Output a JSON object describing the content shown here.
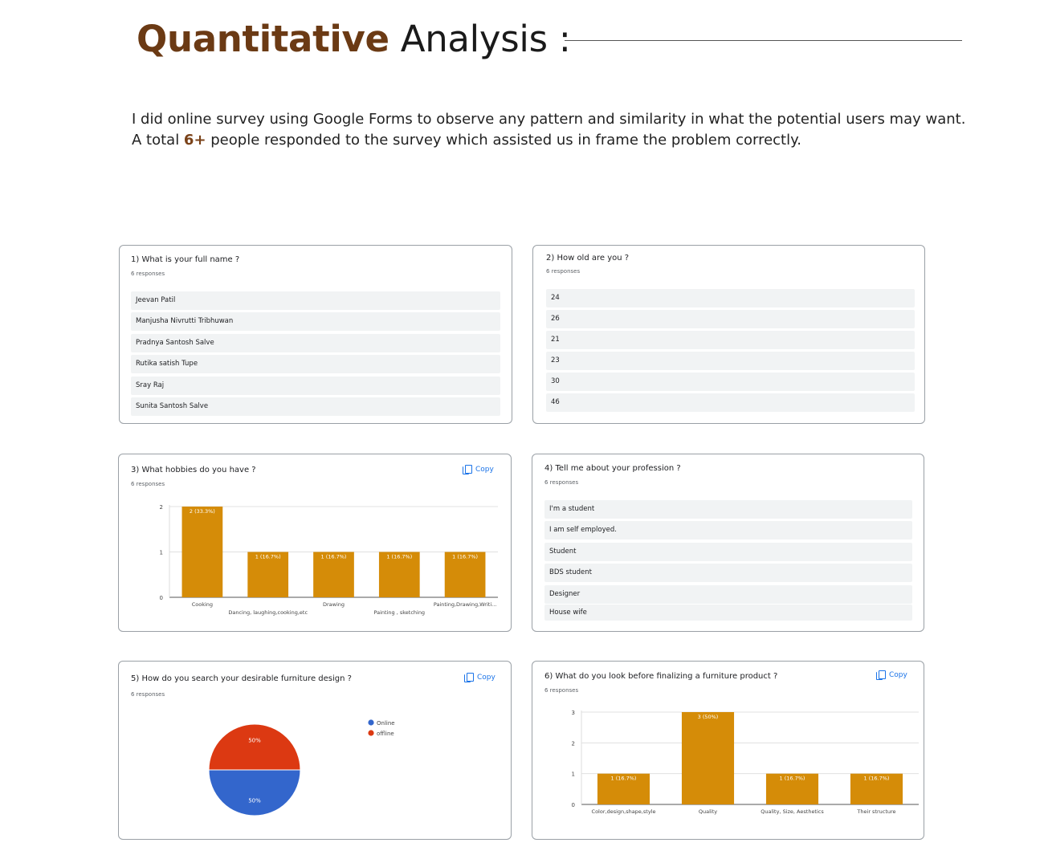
{
  "header": {
    "title_strong": "Quantitative",
    "title_rest": " Analysis :",
    "intro_line1": "I did online survey using Google Forms to observe any pattern and similarity in what the potential users may want.",
    "intro_line2_pre": "A total ",
    "intro_highlight": "6+",
    "intro_line2_post": " people responded to the survey which assisted us in frame the problem correctly."
  },
  "colors": {
    "bar": "#d58c08",
    "pie_online": "#3366cc",
    "pie_offline": "#dc3912",
    "accent": "#6b3a14",
    "link": "#1a73e8"
  },
  "copy_label": "Copy",
  "cards": {
    "q1": {
      "question": "1) What is your full name ?",
      "count": "6 responses",
      "responses": [
        "Jeevan Patil",
        "Manjusha Nivrutti Tribhuwan",
        "Pradnya Santosh Salve",
        "Rutika satish Tupe",
        "Sray Raj",
        "Sunita Santosh Salve"
      ]
    },
    "q2": {
      "question": "2) How old are you ?",
      "count": "6 responses",
      "responses": [
        "24",
        "26",
        "21",
        "23",
        "30",
        "46"
      ]
    },
    "q3": {
      "question": "3) What hobbies do you have ?",
      "count": "6 responses"
    },
    "q4": {
      "question": "4) Tell me about your profession ?",
      "count": "6 responses",
      "responses": [
        "I'm a student",
        "I am self employed.",
        "Student",
        "BDS student",
        "Designer",
        "House wife"
      ]
    },
    "q5": {
      "question": "5) How do you search your desirable furniture design ?",
      "count": "6 responses"
    },
    "q6": {
      "question": "6) What do you look before finalizing a furniture product ?",
      "count": "6 responses"
    }
  },
  "chart_data": [
    {
      "type": "bar",
      "id": "q3",
      "categories": [
        "Cooking",
        "Dancing, laughing,cooking,etc",
        "Drawing",
        "Painting , sketching",
        "Painting,Drawing,Writi..."
      ],
      "values": [
        2,
        1,
        1,
        1,
        1
      ],
      "data_labels": [
        "2 (33.3%)",
        "1 (16.7%)",
        "1 (16.7%)",
        "1 (16.7%)",
        "1 (16.7%)"
      ],
      "y_ticks": [
        "0",
        "1",
        "2"
      ],
      "ylim": [
        0,
        2
      ],
      "grid": true
    },
    {
      "type": "pie",
      "id": "q5",
      "labels": [
        "Online",
        "offline"
      ],
      "values": [
        50,
        50
      ],
      "slice_labels": [
        "50%",
        "50%"
      ],
      "legend": "right"
    },
    {
      "type": "bar",
      "id": "q6",
      "categories": [
        "Color,design,shape,style",
        "Quality",
        "Quality, Size, Aesthetics",
        "Their structure"
      ],
      "values": [
        1,
        3,
        1,
        1
      ],
      "data_labels": [
        "1 (16.7%)",
        "3 (50%)",
        "1 (16.7%)",
        "1 (16.7%)"
      ],
      "y_ticks": [
        "0",
        "1",
        "2",
        "3"
      ],
      "ylim": [
        0,
        3
      ],
      "grid": true
    }
  ]
}
